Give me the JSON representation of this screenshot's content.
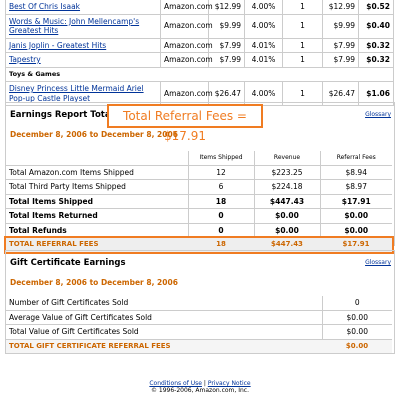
{
  "item_groups": [
    {
      "rows": [
        [
          "Best Of Chris Isaak",
          "Amazon.com",
          "$12.99",
          "4.00%",
          "1",
          "$12.99",
          "$0.52"
        ],
        [
          "Words & Music: John Mellencamp's Greatest Hits",
          "Amazon.com",
          "$9.99",
          "4.00%",
          "1",
          "$9.99",
          "$0.40"
        ],
        [
          "Janis Joplin - Greatest Hits",
          "Amazon.com",
          "$7.99",
          "4.01%",
          "1",
          "$7.99",
          "$0.32"
        ],
        [
          "Tapestry",
          "Amazon.com",
          "$7.99",
          "4.01%",
          "1",
          "$7.99",
          "$0.32"
        ]
      ]
    },
    {
      "heading": "Toys & Games",
      "rows": [
        [
          "Disney Princess Little Mermaid Ariel Pop-up Castle Playset",
          "Amazon.com",
          "$26.47",
          "4.00%",
          "1",
          "$26.47",
          "$1.06"
        ]
      ]
    }
  ],
  "earnings_totals": {
    "title": "Earnings Report Totals",
    "callout": "Total Referral Fees = $17.91",
    "glossary": "Glossary",
    "date_range": "December 8, 2006 to December 8, 2006",
    "header": [
      "Items Shipped",
      "Revenue",
      "Referral Fees"
    ],
    "rows": [
      [
        "Total Amazon.com Items Shipped",
        "12",
        "$223.25",
        "$8.94"
      ],
      [
        "Total Third Party Items Shipped",
        "6",
        "$224.18",
        "$8.97"
      ],
      [
        "Total Items Shipped",
        "18",
        "$447.43",
        "$17.91"
      ],
      [
        "Total Items Returned",
        "0",
        "$0.00",
        "$0.00"
      ],
      [
        "Total Refunds",
        "0",
        "$0.00",
        "$0.00"
      ]
    ],
    "total_row": [
      "TOTAL REFERRAL FEES",
      "18",
      "$447.43",
      "$17.91"
    ]
  },
  "gift_certificates": {
    "title": "Gift Certificate Earnings",
    "glossary": "Glossary",
    "date_range": "December 8, 2006 to December 8, 2006",
    "rows": [
      [
        "Number of Gift Certificates Sold",
        "0"
      ],
      [
        "Average Value of Gift Certificates Sold",
        "$0.00"
      ],
      [
        "Total Value of Gift Certificates Sold",
        "$0.00"
      ]
    ],
    "total_row": [
      "TOTAL GIFT CERTIFICATE REFERRAL FEES",
      "$0.00"
    ]
  },
  "footer": {
    "links": [
      "Conditions of Use",
      "Privacy Notice"
    ],
    "separator": "|",
    "copyright": "© 1996-2006, Amazon.com, Inc."
  }
}
